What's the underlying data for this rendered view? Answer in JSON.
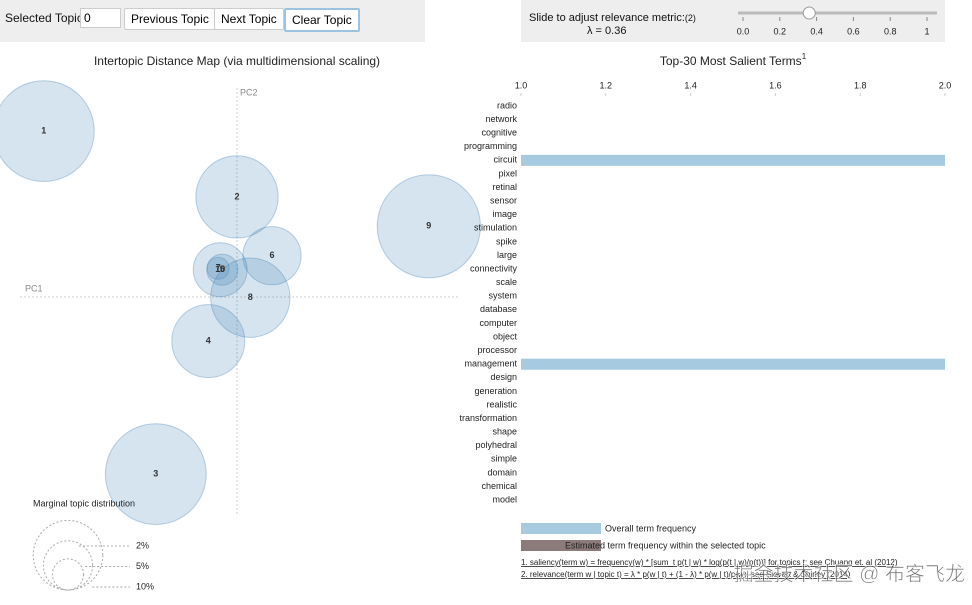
{
  "controls": {
    "selected_topic_label": "Selected Topic:",
    "selected_topic": 0,
    "previous": "Previous Topic",
    "next": "Next Topic",
    "clear": "Clear Topic",
    "slider_label": "Slide to adjust relevance metric:",
    "slider_note": "(2)",
    "lambda_label": "λ = 0.36",
    "lambda": 0.36,
    "slider_lim": [
      0,
      1
    ],
    "slider_ticks": [
      {
        "value": 0,
        "label": "0.0"
      },
      0.2,
      0.4,
      0.6,
      0.8,
      1
    ]
  },
  "chart_data": [
    {
      "type": "scatter",
      "title": "Intertopic Distance Map (via multidimensional scaling)",
      "xlabel": "PC1",
      "ylabel": "PC2",
      "xlim": [
        -0.32,
        0.32
      ],
      "ylim": [
        -0.32,
        0.32
      ],
      "color": "#4682b4",
      "topics": [
        1,
        2,
        3,
        4,
        5,
        6,
        7,
        8,
        9,
        10
      ],
      "x": [
        -0.276,
        0,
        -0.116,
        -0.041,
        -0.021,
        0.05,
        -0.027,
        0.019,
        0.274,
        -0.024
      ],
      "y": [
        0.237,
        0.143,
        -0.253,
        -0.063,
        0.039,
        0.059,
        0.041,
        -0.001,
        0.101,
        0.039
      ],
      "sizes": [
        21,
        14,
        21,
        11,
        2,
        7,
        1,
        13,
        22,
        6
      ],
      "size_legend_title": "Marginal topic distribution",
      "size_legend": [
        {
          "value": 2,
          "label": "2%"
        },
        {
          "value": 5,
          "label": "5%"
        },
        {
          "value": 10,
          "label": "10%"
        }
      ]
    },
    {
      "type": "hbar",
      "title": "Top-30 Most Salient Terms",
      "title_note": "1",
      "xlim": [
        1,
        2
      ],
      "xticks": [
        {
          "value": 1,
          "label": "1.0"
        },
        1.2,
        1.4,
        1.6,
        1.8,
        {
          "value": 2,
          "label": "2.0"
        }
      ],
      "categories": [
        "radio",
        "network",
        "cognitive",
        "programming",
        "circuit",
        "pixel",
        "retinal",
        "sensor",
        "image",
        "stimulation",
        "spike",
        "large",
        "connectivity",
        "scale",
        "system",
        "database",
        "computer",
        "object",
        "processor",
        "management",
        "design",
        "generation",
        "realistic",
        "transformation",
        "shape",
        "polyhedral",
        "simple",
        "domain",
        "chemical",
        "model"
      ],
      "series": [
        {
          "name": "Overall term frequency",
          "color": "#a6cbe0",
          "values": [
            1,
            1,
            1,
            1,
            2,
            1,
            1,
            1,
            1,
            1,
            1,
            1,
            1,
            1,
            1,
            1,
            1,
            1,
            1,
            2,
            1,
            1,
            1,
            1,
            1,
            1,
            1,
            1,
            1,
            1
          ]
        },
        {
          "name": "Estimated term frequency within the selected topic",
          "color": "#8c7b7b",
          "values": [
            null,
            null,
            null,
            null,
            null,
            null,
            null,
            null,
            null,
            null,
            null,
            null,
            null,
            null,
            null,
            null,
            null,
            null,
            null,
            null,
            null,
            null,
            null,
            null,
            null,
            null,
            null,
            null,
            null,
            null
          ]
        }
      ],
      "footnotes": [
        "1. saliency(term w) = frequency(w) * [sum_t p(t | w) * log(p(t | w)/p(t))] for topics t; see Chuang et. al (2012)",
        "2. relevance(term w | topic t) = λ * p(w | t) + (1 - λ) * p(w | t)/p(w); see Sievert & Shirley (2014)"
      ]
    }
  ],
  "watermark": "掘金技术社区 @ 布客飞龙"
}
